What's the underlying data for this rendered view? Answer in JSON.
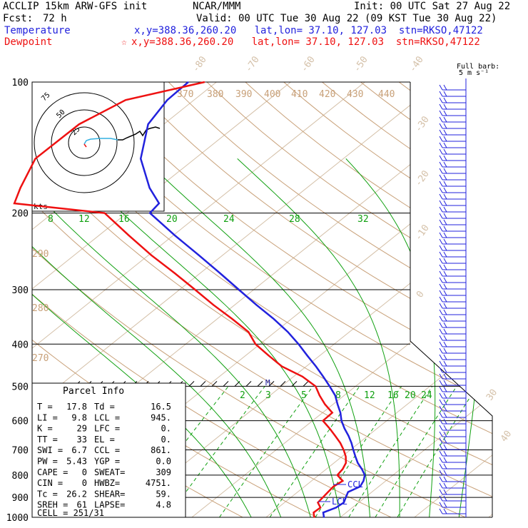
{
  "header": {
    "model_title": "ACCLIP 15km ARW-GFS init",
    "org": "NCAR/MMM",
    "init": "Init: 00 UTC Sat 27 Aug 22",
    "fcst_label": "Fcst:",
    "fcst_value": "72 h",
    "valid": "Valid: 00 UTC Tue 30 Aug 22 (09 KST Tue 30 Aug 22)",
    "temp_label": "Temperature",
    "temp_loc": "x,y=388.36,260.20   lat,lon= 37.10, 127.03  stn=RKSO,47122",
    "dew_label": "Dewpoint",
    "dew_marker": "☆",
    "dew_loc": "x,y=388.36,260.20   lat,lon= 37.10, 127.03  stn=RKSO,47122",
    "barb_key_1": "Full barb:",
    "barb_key_2": "5 m s⁻¹"
  },
  "colors": {
    "temperature": "#2222dd",
    "dewpoint": "#ee1111",
    "isotherm": "#d4c0a8",
    "dry_adiabat": "#c8a078",
    "moist_adiabat": "#10a010",
    "mixing_ratio": "#10a010",
    "axis": "#000000"
  },
  "parcel_info": {
    "title": "Parcel Info",
    "rows": [
      [
        "T  =",
        "17.8",
        "Td =",
        "16.5"
      ],
      [
        "LI =",
        "9.8",
        "LCL =",
        "945."
      ],
      [
        "K  =",
        "29",
        "LFC =",
        "0."
      ],
      [
        "TT =",
        "33",
        "EL  =",
        "0."
      ],
      [
        "SWI =",
        "6.7",
        "CCL =",
        "861."
      ],
      [
        "PW =",
        "5.43",
        "YGP =",
        "0.0"
      ],
      [
        "CAPE =",
        "0",
        "SWEAT=",
        "309"
      ],
      [
        "CIN =",
        "0",
        "HWBZ=",
        "4751."
      ],
      [
        "Tc =",
        "26.2",
        "SHEAR=",
        "59."
      ],
      [
        "SREH =",
        "61",
        "LAPSE=",
        "4.8"
      ]
    ],
    "cell": "CELL = 251/31"
  },
  "markers": {
    "ccl": "CCL",
    "lcl": "LCL",
    "m": "M"
  },
  "hodograph": {
    "units": "kts",
    "ring_labels": [
      "25",
      "50",
      "75"
    ]
  },
  "chart_data": {
    "type": "line",
    "title": "",
    "y_axis": "pressure (hPa, log scale)",
    "pressure_ticks": [
      100,
      200,
      300,
      400,
      500,
      600,
      700,
      800,
      900,
      1000
    ],
    "pressure_labels": [
      "100",
      "200",
      "300",
      "400",
      "500",
      "600",
      "700",
      "800",
      "900",
      "1000"
    ],
    "isotherm_labels": [
      "-80",
      "-70",
      "-60",
      "-50",
      "-40",
      "-30",
      "-20",
      "-10",
      "0",
      "30",
      "40"
    ],
    "dry_adiabat_labels": [
      "370",
      "380",
      "390",
      "400",
      "410",
      "420",
      "430",
      "440",
      "290",
      "280",
      "270"
    ],
    "mixing_ratio_labels": [
      "2",
      "3",
      "5",
      "8",
      "12",
      "16",
      "20",
      "24"
    ],
    "moist_adiabat_labels": [
      "8",
      "12",
      "16",
      "20",
      "24",
      "28",
      "32"
    ],
    "series": [
      {
        "name": "Temperature",
        "pressure": [
          1000,
          975,
          950,
          925,
          900,
          875,
          850,
          825,
          800,
          775,
          750,
          725,
          700,
          675,
          650,
          625,
          600,
          575,
          550,
          525,
          500,
          475,
          450,
          425,
          400,
          375,
          350,
          325,
          300,
          275,
          250,
          225,
          200,
          190,
          175,
          150,
          125,
          110,
          100
        ],
        "values": [
          17.8,
          16.9,
          17.8,
          18.0,
          17.4,
          16.8,
          17.5,
          17.0,
          16.2,
          14.8,
          13.2,
          11.8,
          10.4,
          9.0,
          7.4,
          5.6,
          3.9,
          2.4,
          0.6,
          -1.2,
          -3.5,
          -6.0,
          -8.7,
          -11.7,
          -14.8,
          -18.3,
          -22.4,
          -27.1,
          -32.0,
          -37.3,
          -43.2,
          -49.8,
          -56.9,
          -57.3,
          -61.2,
          -67.3,
          -72.1,
          -73.6,
          -73.8
        ]
      },
      {
        "name": "Dewpoint",
        "pressure": [
          1000,
          975,
          950,
          925,
          900,
          875,
          850,
          825,
          800,
          775,
          750,
          725,
          700,
          675,
          650,
          625,
          600,
          575,
          550,
          525,
          500,
          475,
          450,
          425,
          400,
          375,
          350,
          325,
          300,
          275,
          250,
          225,
          200,
          190,
          175,
          150,
          125,
          110,
          100
        ],
        "values": [
          16.5,
          15.6,
          15.7,
          14.5,
          14.3,
          14.1,
          13.9,
          14.2,
          12.5,
          12.2,
          11.6,
          10.5,
          9.1,
          7.5,
          5.6,
          3.6,
          1.4,
          1.3,
          -1.1,
          -3.3,
          -5.4,
          -8.8,
          -13.3,
          -16.9,
          -20.6,
          -23.6,
          -28.0,
          -32.9,
          -37.9,
          -43.4,
          -49.6,
          -56.0,
          -63.0,
          -76.8,
          -78.6,
          -81.5,
          -81.4,
          -79.2,
          -71.6
        ]
      }
    ]
  }
}
